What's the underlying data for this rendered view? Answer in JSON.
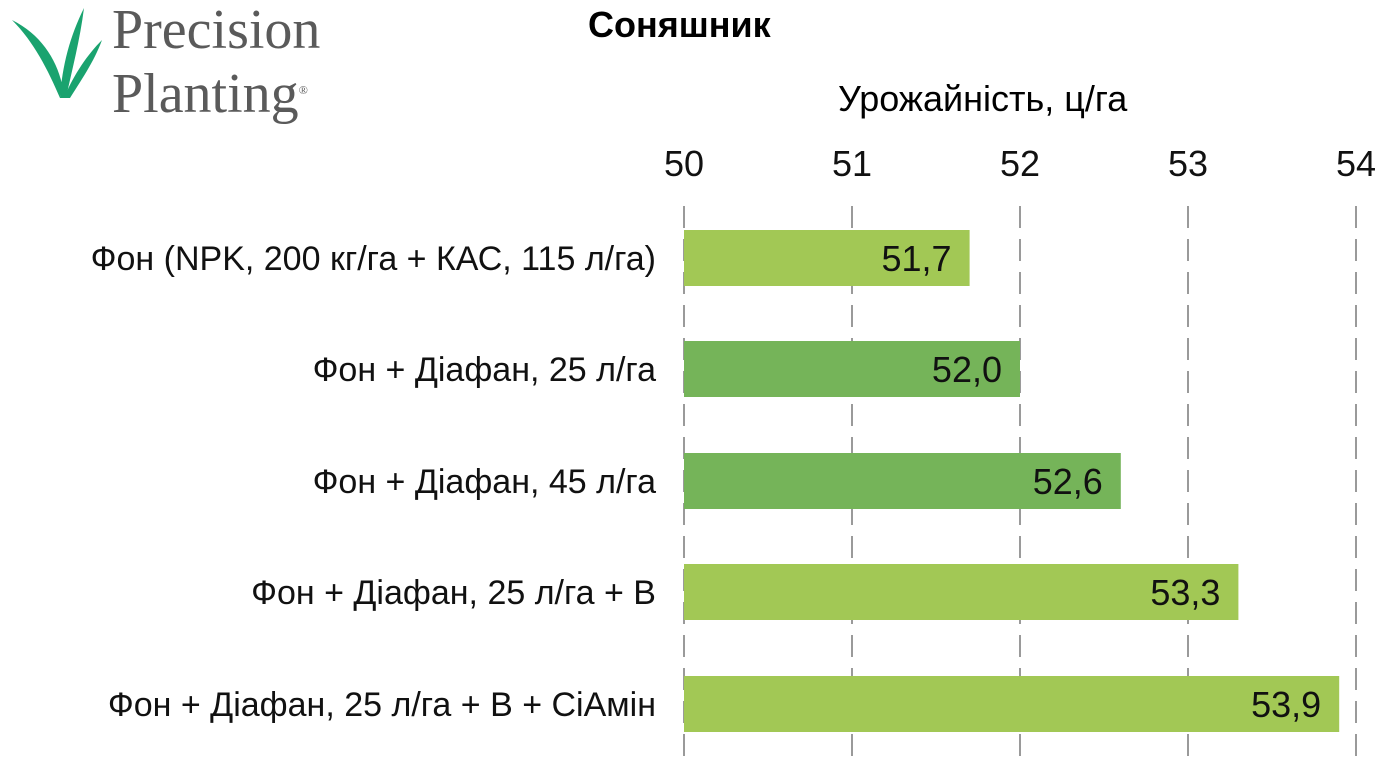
{
  "logo": {
    "line1": "Precision",
    "line2": "Planting",
    "registered": "®",
    "leaf_color": "#1aa36f",
    "text_color": "#5a5a5a"
  },
  "chart_data": {
    "type": "bar",
    "orientation": "horizontal",
    "title": "Соняшник",
    "xlabel": "Урожайність, ц/га",
    "ylabel": "",
    "xlim": [
      50,
      54
    ],
    "ticks": [
      "50",
      "51",
      "52",
      "53",
      "54"
    ],
    "tick_values": [
      50,
      51,
      52,
      53,
      54
    ],
    "x_axis_position": "top",
    "grid": "vertical dashed",
    "legend": "none",
    "categories": [
      "Фон (NPK, 200 кг/га + КАС, 115 л/га)",
      "Фон + Діафан, 25 л/га",
      "Фон + Діафан, 45 л/га",
      "Фон + Діафан, 25 л/га + В",
      "Фон + Діафан, 25 л/га + В + СіАмін"
    ],
    "values": [
      51.7,
      52.0,
      52.6,
      53.3,
      53.9
    ],
    "value_labels": [
      "51,7",
      "52,0",
      "52,6",
      "53,3",
      "53,9"
    ],
    "bar_colors": [
      "#a2c855",
      "#75b459",
      "#75b459",
      "#a2c855",
      "#a2c855"
    ],
    "grid_color": "#9a9a9a"
  }
}
